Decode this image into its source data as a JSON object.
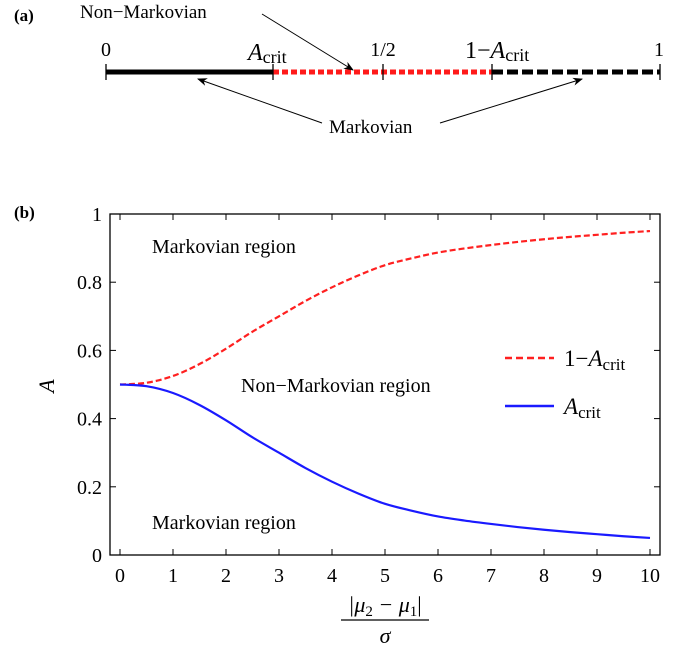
{
  "panel_a": {
    "label": "(a)",
    "ticks": {
      "zero": "0",
      "half": "1/2",
      "one": "1"
    },
    "A_crit_main": "A",
    "A_crit_sub": "crit",
    "one_minus": "1−",
    "non_markovian": "Non−Markovian",
    "markovian": "Markovian",
    "line_value": 0.3,
    "colors": {
      "markovian": "#000000",
      "non_markovian": "#ff1a1a"
    }
  },
  "panel_b": {
    "label": "(b)",
    "region_top": "Markovian region",
    "region_middle": "Non−Markovian region",
    "region_bottom": "Markovian region"
  },
  "chart_data": {
    "type": "line",
    "title": "",
    "xlabel_numerator": "|μ",
    "xlabel_mu2_sub": "2",
    "xlabel_minus": " − μ",
    "xlabel_mu1_sub": "1",
    "xlabel_close": "|",
    "xlabel_denominator": "σ",
    "ylabel": "A",
    "xlim": [
      0,
      10
    ],
    "ylim": [
      0,
      1
    ],
    "xticks": [
      0,
      1,
      2,
      3,
      4,
      5,
      6,
      7,
      8,
      9,
      10
    ],
    "yticks": [
      "0",
      "0.2",
      "0.4",
      "0.6",
      "0.8",
      "1"
    ],
    "ytick_values": [
      0,
      0.2,
      0.4,
      0.6,
      0.8,
      1.0
    ],
    "legend_position": "right",
    "series": [
      {
        "name": "1−A_crit",
        "legend_prefix": "1−",
        "legend_main": "A",
        "legend_sub": "crit",
        "color": "#ff2020",
        "style": "dashed",
        "x": [
          0,
          0.5,
          1,
          1.5,
          2,
          2.5,
          3,
          3.5,
          4,
          4.5,
          5,
          5.5,
          6,
          6.5,
          7,
          7.5,
          8,
          8.5,
          9,
          9.5,
          10
        ],
        "y": [
          0.5,
          0.505,
          0.525,
          0.56,
          0.605,
          0.655,
          0.7,
          0.745,
          0.785,
          0.82,
          0.85,
          0.87,
          0.887,
          0.899,
          0.909,
          0.918,
          0.926,
          0.933,
          0.939,
          0.945,
          0.95
        ]
      },
      {
        "name": "A_crit",
        "legend_prefix": "",
        "legend_main": "A",
        "legend_sub": "crit",
        "color": "#1a1aff",
        "style": "solid",
        "x": [
          0,
          0.5,
          1,
          1.5,
          2,
          2.5,
          3,
          3.5,
          4,
          4.5,
          5,
          5.5,
          6,
          6.5,
          7,
          7.5,
          8,
          8.5,
          9,
          9.5,
          10
        ],
        "y": [
          0.5,
          0.495,
          0.475,
          0.44,
          0.395,
          0.345,
          0.3,
          0.255,
          0.215,
          0.18,
          0.15,
          0.13,
          0.113,
          0.101,
          0.091,
          0.082,
          0.074,
          0.067,
          0.061,
          0.055,
          0.05
        ]
      }
    ]
  }
}
